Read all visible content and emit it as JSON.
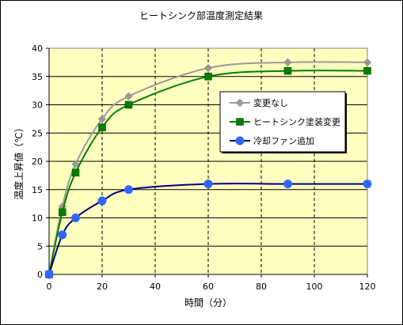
{
  "chart_data": {
    "type": "line",
    "title": "ヒートシンク部温度測定結果",
    "xlabel": "時間（分）",
    "ylabel": "温度上昇値（℃）",
    "xlim": [
      0,
      120
    ],
    "ylim": [
      0,
      40
    ],
    "x_ticks": [
      "0",
      "20",
      "40",
      "60",
      "80",
      "100",
      "120"
    ],
    "y_ticks": [
      "0",
      "5",
      "10",
      "15",
      "20",
      "25",
      "30",
      "35",
      "40"
    ],
    "grid": true,
    "legend_position": "right",
    "plot_background": "#ffffc0",
    "series": [
      {
        "name": "変更なし",
        "color": "#999999",
        "marker": "diamond",
        "x": [
          0,
          5,
          10,
          20,
          30,
          60,
          90,
          120
        ],
        "y": [
          0,
          12,
          19.5,
          27.5,
          31.5,
          36.5,
          37.5,
          37.5
        ]
      },
      {
        "name": "ヒートシンク塗装変更",
        "color": "#008000",
        "marker": "square",
        "x": [
          0,
          5,
          10,
          20,
          30,
          60,
          90,
          120
        ],
        "y": [
          0,
          11,
          18,
          26,
          30,
          35,
          36,
          36
        ]
      },
      {
        "name": "冷却ファン追加",
        "color": "#3366ff",
        "marker": "circle",
        "x": [
          0,
          5,
          10,
          20,
          30,
          60,
          90,
          120
        ],
        "y": [
          0,
          7,
          10,
          13,
          15,
          16,
          16,
          16
        ]
      }
    ]
  }
}
